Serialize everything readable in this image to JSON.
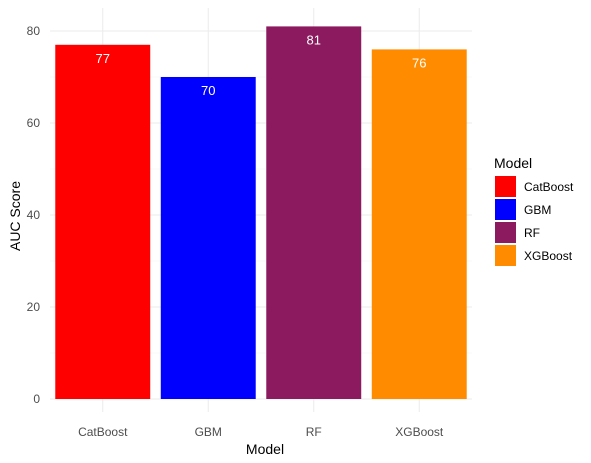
{
  "chart_data": {
    "type": "bar",
    "categories": [
      "CatBoost",
      "GBM",
      "RF",
      "XGBoost"
    ],
    "values": [
      77,
      70,
      81,
      76
    ],
    "data_labels": [
      "77",
      "70",
      "81",
      "76"
    ],
    "colors": [
      "#ff0000",
      "#0000ff",
      "#8b1a5e",
      "#ff8c00"
    ],
    "xlabel": "Model",
    "ylabel": "AUC Score",
    "ylim": [
      0,
      85
    ],
    "yticks": [
      0,
      20,
      40,
      60,
      80
    ],
    "grid": true,
    "legend": {
      "title": "Model",
      "placement": "right",
      "entries": [
        "CatBoost",
        "GBM",
        "RF",
        "XGBoost"
      ]
    }
  }
}
